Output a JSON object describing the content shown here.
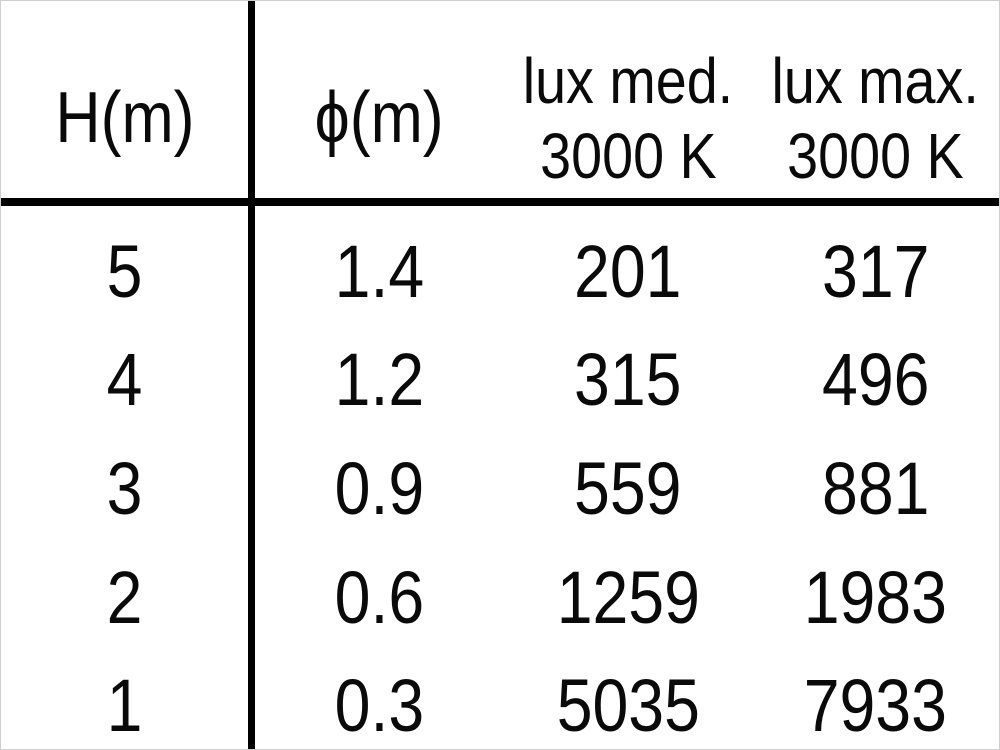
{
  "chart_data": {
    "type": "table",
    "columns": [
      {
        "id": "height",
        "line1": "H(m)",
        "line2": ""
      },
      {
        "id": "diameter",
        "line1": "ϕ(m)",
        "line2": ""
      },
      {
        "id": "lux_med",
        "line1": "lux med.",
        "line2": "3000 K"
      },
      {
        "id": "lux_max",
        "line1": "lux max.",
        "line2": "3000 K"
      }
    ],
    "rows": [
      [
        5,
        1.4,
        201,
        317
      ],
      [
        4,
        1.2,
        315,
        496
      ],
      [
        3,
        0.9,
        559,
        881
      ],
      [
        2,
        0.6,
        1259,
        1983
      ],
      [
        1,
        0.3,
        5035,
        7933
      ]
    ],
    "layout": {
      "column_divider_after": "height",
      "header_divider": true,
      "grid": "off"
    }
  },
  "colors": {
    "text": "#0a0a0a",
    "rule": "#000000",
    "background": "#ffffff",
    "edge_border": "#cfcfcf"
  }
}
